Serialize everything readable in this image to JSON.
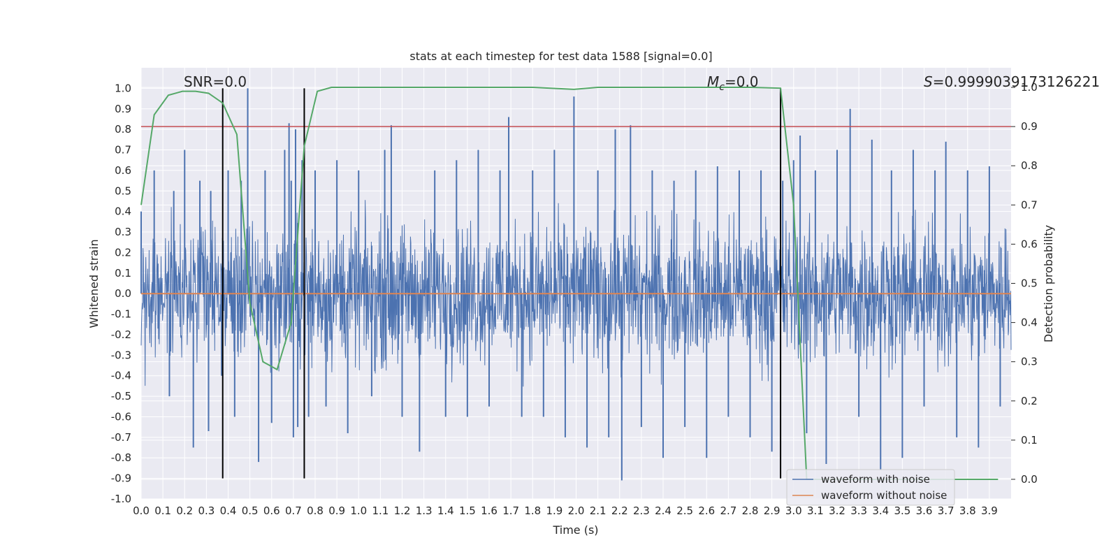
{
  "chart_data": {
    "type": "line",
    "title": "stats at each timestep for test data 1588 [signal=0.0]",
    "xlabel": "Time (s)",
    "ylabel": "Whitened strain",
    "ylabel_right": "Detection probability",
    "xlim": [
      0.0,
      4.0
    ],
    "ylim": [
      -1.0,
      1.1
    ],
    "ylim_right": [
      -0.05,
      1.05
    ],
    "x_ticks": [
      "0.0",
      "0.1",
      "0.2",
      "0.3",
      "0.4",
      "0.5",
      "0.6",
      "0.7",
      "0.8",
      "0.9",
      "1.0",
      "1.1",
      "1.2",
      "1.3",
      "1.4",
      "1.5",
      "1.6",
      "1.7",
      "1.8",
      "1.9",
      "2.0",
      "2.1",
      "2.2",
      "2.3",
      "2.4",
      "2.5",
      "2.6",
      "2.7",
      "2.8",
      "2.9",
      "3.0",
      "3.1",
      "3.2",
      "3.3",
      "3.4",
      "3.5",
      "3.6",
      "3.7",
      "3.8",
      "3.9"
    ],
    "y_ticks": [
      "1.0",
      "0.9",
      "0.8",
      "0.7",
      "0.6",
      "0.5",
      "0.4",
      "0.3",
      "0.2",
      "0.1",
      "0.0",
      "-0.1",
      "-0.2",
      "-0.3",
      "-0.4",
      "-0.5",
      "-0.6",
      "-0.7",
      "-0.8",
      "-0.9",
      "-1.0"
    ],
    "y_ticks_right": [
      "1.0",
      "0.9",
      "0.8",
      "0.7",
      "0.6",
      "0.5",
      "0.4",
      "0.3",
      "0.2",
      "0.1",
      "0.0"
    ],
    "annotations": {
      "snr": "SNR=0.0",
      "mc_symbol": "M",
      "mc_sub": "c",
      "mc_value": "=0.0",
      "s_symbol": "S",
      "s_value": "=0.9999039173126221"
    },
    "legend": {
      "placement": "lower right",
      "entries": [
        "waveform with noise",
        "waveform without noise"
      ]
    },
    "series": [
      {
        "name": "waveform with noise",
        "axis": "left",
        "color": "#4c72b0",
        "noise_band": {
          "x_range": [
            0.0,
            4.0
          ],
          "typical_amplitude": [
            -0.45,
            0.45
          ],
          "visible_max": 1.0,
          "visible_min": -0.91
        },
        "x": [
          0.0,
          0.06,
          0.13,
          0.15,
          0.2,
          0.24,
          0.27,
          0.31,
          0.32,
          0.37,
          0.4,
          0.43,
          0.46,
          0.49,
          0.54,
          0.57,
          0.6,
          0.66,
          0.68,
          0.69,
          0.7,
          0.71,
          0.72,
          0.74,
          0.77,
          0.8,
          0.85,
          0.9,
          0.95,
          1.0,
          1.06,
          1.12,
          1.15,
          1.2,
          1.28,
          1.35,
          1.4,
          1.45,
          1.5,
          1.55,
          1.6,
          1.65,
          1.69,
          1.75,
          1.8,
          1.85,
          1.9,
          1.95,
          1.99,
          2.05,
          2.1,
          2.15,
          2.18,
          2.21,
          2.25,
          2.3,
          2.35,
          2.4,
          2.45,
          2.5,
          2.55,
          2.6,
          2.65,
          2.7,
          2.75,
          2.8,
          2.85,
          2.9,
          2.95,
          3.0,
          3.03,
          3.06,
          3.1,
          3.15,
          3.2,
          3.26,
          3.3,
          3.36,
          3.4,
          3.45,
          3.5,
          3.55,
          3.6,
          3.65,
          3.7,
          3.75,
          3.8,
          3.85,
          3.9,
          3.95
        ],
        "y": [
          0.4,
          0.6,
          -0.5,
          0.5,
          0.7,
          -0.75,
          0.55,
          -0.67,
          0.5,
          -0.4,
          0.6,
          -0.6,
          0.55,
          1.0,
          -0.82,
          0.6,
          -0.63,
          0.7,
          0.83,
          0.55,
          -0.7,
          0.8,
          -0.65,
          0.65,
          -0.6,
          0.6,
          -0.55,
          0.65,
          -0.68,
          0.6,
          -0.5,
          0.7,
          0.82,
          -0.6,
          -0.77,
          0.6,
          -0.6,
          0.65,
          -0.6,
          0.7,
          -0.55,
          0.6,
          0.86,
          -0.6,
          0.6,
          -0.6,
          0.7,
          -0.7,
          0.96,
          -0.75,
          0.6,
          -0.7,
          0.8,
          -0.91,
          0.82,
          -0.65,
          0.6,
          -0.8,
          0.55,
          -0.65,
          0.6,
          -0.8,
          0.62,
          -0.6,
          0.6,
          -0.7,
          0.6,
          -0.77,
          0.55,
          0.65,
          0.77,
          -0.68,
          0.6,
          -0.83,
          0.7,
          0.9,
          -0.6,
          0.75,
          -0.86,
          0.6,
          -0.8,
          0.7,
          -0.55,
          0.6,
          0.74,
          -0.7,
          0.6,
          -0.75,
          0.62,
          -0.55
        ]
      },
      {
        "name": "waveform without noise",
        "axis": "left",
        "color": "#dd8452",
        "x": [
          0.0,
          4.0
        ],
        "y": [
          0.0,
          0.0
        ]
      },
      {
        "name": "",
        "axis": "right",
        "color": "#55a868",
        "x": [
          0.0,
          0.06,
          0.125,
          0.19,
          0.25,
          0.31,
          0.375,
          0.44,
          0.5,
          0.56,
          0.625,
          0.69,
          0.75,
          0.81,
          0.875,
          1.0,
          1.2,
          1.5,
          1.8,
          1.99,
          2.1,
          2.5,
          2.8,
          2.94,
          3.0,
          3.06,
          3.1,
          3.5,
          3.94
        ],
        "y": [
          0.7,
          0.93,
          0.98,
          0.99,
          0.99,
          0.985,
          0.96,
          0.88,
          0.45,
          0.3,
          0.28,
          0.4,
          0.85,
          0.99,
          1.0,
          1.0,
          1.0,
          1.0,
          1.0,
          0.995,
          1.0,
          1.0,
          1.0,
          0.998,
          0.7,
          0.0,
          0.0,
          0.0,
          0.0
        ]
      }
    ],
    "threshold": {
      "axis": "right",
      "y": 0.9,
      "color": "#c44e52"
    },
    "event_markers": {
      "x": [
        0.375,
        0.75,
        2.94
      ],
      "y_range": [
        -0.9,
        1.0
      ],
      "color": "#000000"
    },
    "grid": true,
    "background": "#eaeaf2"
  }
}
